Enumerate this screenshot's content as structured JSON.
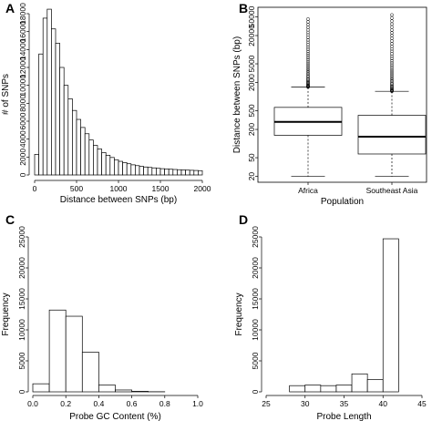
{
  "chart_data": [
    {
      "panel": "A",
      "type": "bar",
      "xlabel": "Distance between SNPs (bp)",
      "ylabel": "# of SNPs",
      "xlim": [
        0,
        2000
      ],
      "ylim": [
        0,
        18000
      ],
      "xticks": [
        0,
        500,
        1000,
        1500,
        2000
      ],
      "yticks": [
        0,
        2000,
        4000,
        6000,
        8000,
        10000,
        12000,
        14000,
        16000,
        18000
      ],
      "bin_width": 50,
      "values": [
        2300,
        13500,
        17500,
        18500,
        16300,
        14700,
        12000,
        10000,
        8500,
        7200,
        6200,
        5300,
        4600,
        3900,
        3300,
        2900,
        2500,
        2200,
        1950,
        1700,
        1520,
        1380,
        1250,
        1130,
        1040,
        960,
        890,
        840,
        790,
        740,
        700,
        670,
        640,
        610,
        585,
        560,
        540,
        520,
        500,
        480
      ]
    },
    {
      "panel": "B",
      "type": "boxplot",
      "xlabel": "Population",
      "ylabel": "Distance between SNPs (bp)",
      "scale": "log",
      "ylim": [
        15,
        80000
      ],
      "yticks": [
        20,
        50,
        200,
        500,
        2000,
        5000,
        20000,
        50000
      ],
      "categories": [
        "Africa",
        "Southeast Asia"
      ],
      "boxes": [
        {
          "name": "Africa",
          "whisker_low": 20,
          "q1": 150,
          "median": 290,
          "q3": 590,
          "whisker_high": 1600,
          "outlier_min": 1600,
          "outlier_max": 45000
        },
        {
          "name": "Southeast Asia",
          "whisker_low": 20,
          "q1": 60,
          "median": 140,
          "q3": 400,
          "whisker_high": 1300,
          "outlier_min": 1300,
          "outlier_max": 55000
        }
      ]
    },
    {
      "panel": "C",
      "type": "bar",
      "xlabel": "Probe GC Content (%)",
      "ylabel": "Frequency",
      "xlim": [
        0,
        1
      ],
      "ylim": [
        0,
        25000
      ],
      "xticks": [
        "0.0",
        "0.2",
        "0.4",
        "0.6",
        "0.8",
        "1.0"
      ],
      "yticks": [
        0,
        5000,
        10000,
        15000,
        20000,
        25000
      ],
      "bin_edges": [
        0.0,
        0.1,
        0.2,
        0.3,
        0.4,
        0.5,
        0.6,
        0.7,
        0.8
      ],
      "values": [
        1300,
        13200,
        12200,
        6400,
        1100,
        300,
        80,
        20
      ]
    },
    {
      "panel": "D",
      "type": "bar",
      "xlabel": "Probe Length",
      "ylabel": "Frequency",
      "xlim": [
        25,
        45
      ],
      "ylim": [
        0,
        25000
      ],
      "xticks": [
        25,
        30,
        35,
        40,
        45
      ],
      "yticks": [
        0,
        5000,
        10000,
        15000,
        20000,
        25000
      ],
      "bin_edges": [
        28,
        30,
        32,
        34,
        36,
        38,
        40,
        42
      ],
      "values": [
        1000,
        1100,
        1000,
        1100,
        2900,
        2000,
        24700
      ]
    }
  ]
}
